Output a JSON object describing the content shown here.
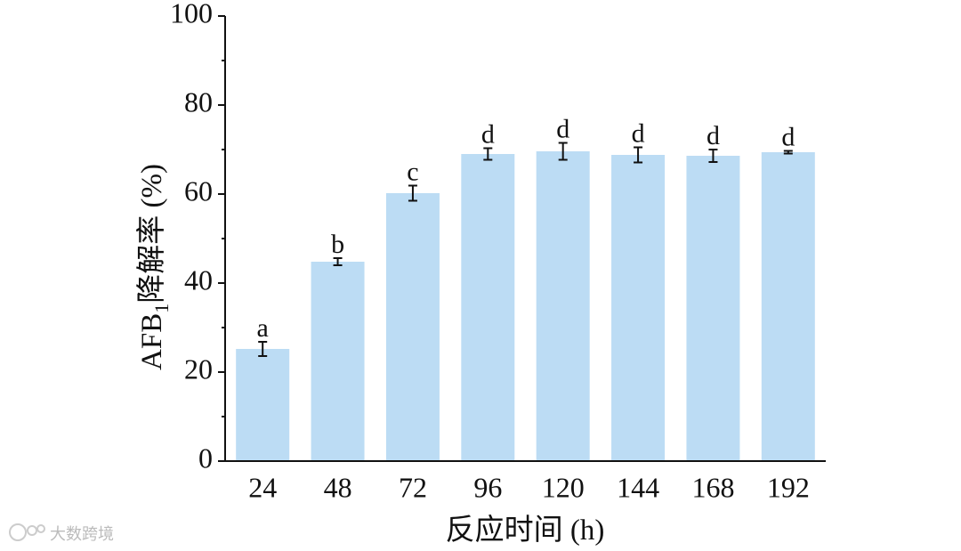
{
  "chart_data": {
    "type": "bar",
    "y_label": {
      "main": "AFB",
      "sub": "1",
      "rest": "降解率 (%)"
    },
    "x_label": "反应时间 (h)",
    "categories": [
      "24",
      "48",
      "72",
      "96",
      "120",
      "144",
      "168",
      "192"
    ],
    "values": [
      25.2,
      44.8,
      60.2,
      69.0,
      69.6,
      68.8,
      68.6,
      69.4
    ],
    "errors": [
      1.6,
      0.8,
      1.7,
      1.3,
      1.9,
      1.7,
      1.4,
      0.3
    ],
    "annotations": [
      "a",
      "b",
      "c",
      "d",
      "d",
      "d",
      "d",
      "d"
    ],
    "color": "#bcdcf4",
    "ylim": [
      0,
      100
    ],
    "yticks": [
      0,
      20,
      40,
      60,
      80,
      100
    ],
    "yminor": [
      10,
      30,
      50,
      70,
      90
    ]
  },
  "watermark": "大数跨境"
}
